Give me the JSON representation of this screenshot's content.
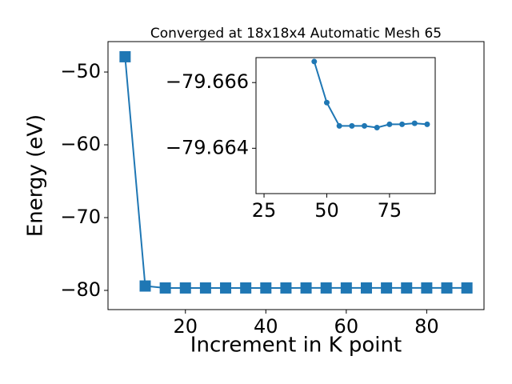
{
  "chart_data": [
    {
      "type": "line",
      "title": "Converged at 18x18x4 Automatic Mesh 65",
      "xlabel": "Increment in K point",
      "ylabel": "Energy (eV)",
      "x": [
        5,
        10,
        15,
        20,
        25,
        30,
        35,
        40,
        45,
        50,
        55,
        60,
        65,
        70,
        75,
        80,
        85,
        90
      ],
      "values": [
        -47.9,
        -79.4,
        -79.667,
        -79.667,
        -79.667,
        -79.667,
        -79.667,
        -79.667,
        -79.66664,
        -79.66539,
        -79.66468,
        -79.66468,
        -79.66468,
        -79.66463,
        -79.66473,
        -79.66473,
        -79.66476,
        -79.66473
      ],
      "color": "#1f77b4",
      "marker": "square",
      "xlim": [
        0.75,
        94.25
      ],
      "ylim": [
        -82.64,
        -45.82
      ],
      "xticks": [
        20,
        40,
        60,
        80
      ],
      "yticks": [
        {
          "value": -80,
          "label": "−80"
        },
        {
          "value": -70,
          "label": "−70"
        },
        {
          "value": -60,
          "label": "−60"
        },
        {
          "value": -50,
          "label": "−50"
        }
      ]
    },
    {
      "type": "line",
      "x": [
        45,
        50,
        55,
        60,
        65,
        70,
        75,
        80,
        85,
        90
      ],
      "values": [
        -79.66664,
        -79.66539,
        -79.66468,
        -79.66468,
        -79.66468,
        -79.66463,
        -79.66473,
        -79.66473,
        -79.66476,
        -79.66473
      ],
      "color": "#1f77b4",
      "marker": "circle",
      "xlim": [
        21.8,
        93.2
      ],
      "ylim": [
        -79.66262,
        -79.66676
      ],
      "xticks": [
        25,
        50,
        75
      ],
      "yticks": [
        {
          "value": -79.666,
          "label": "−79.666"
        },
        {
          "value": -79.664,
          "label": "−79.664"
        }
      ]
    }
  ]
}
